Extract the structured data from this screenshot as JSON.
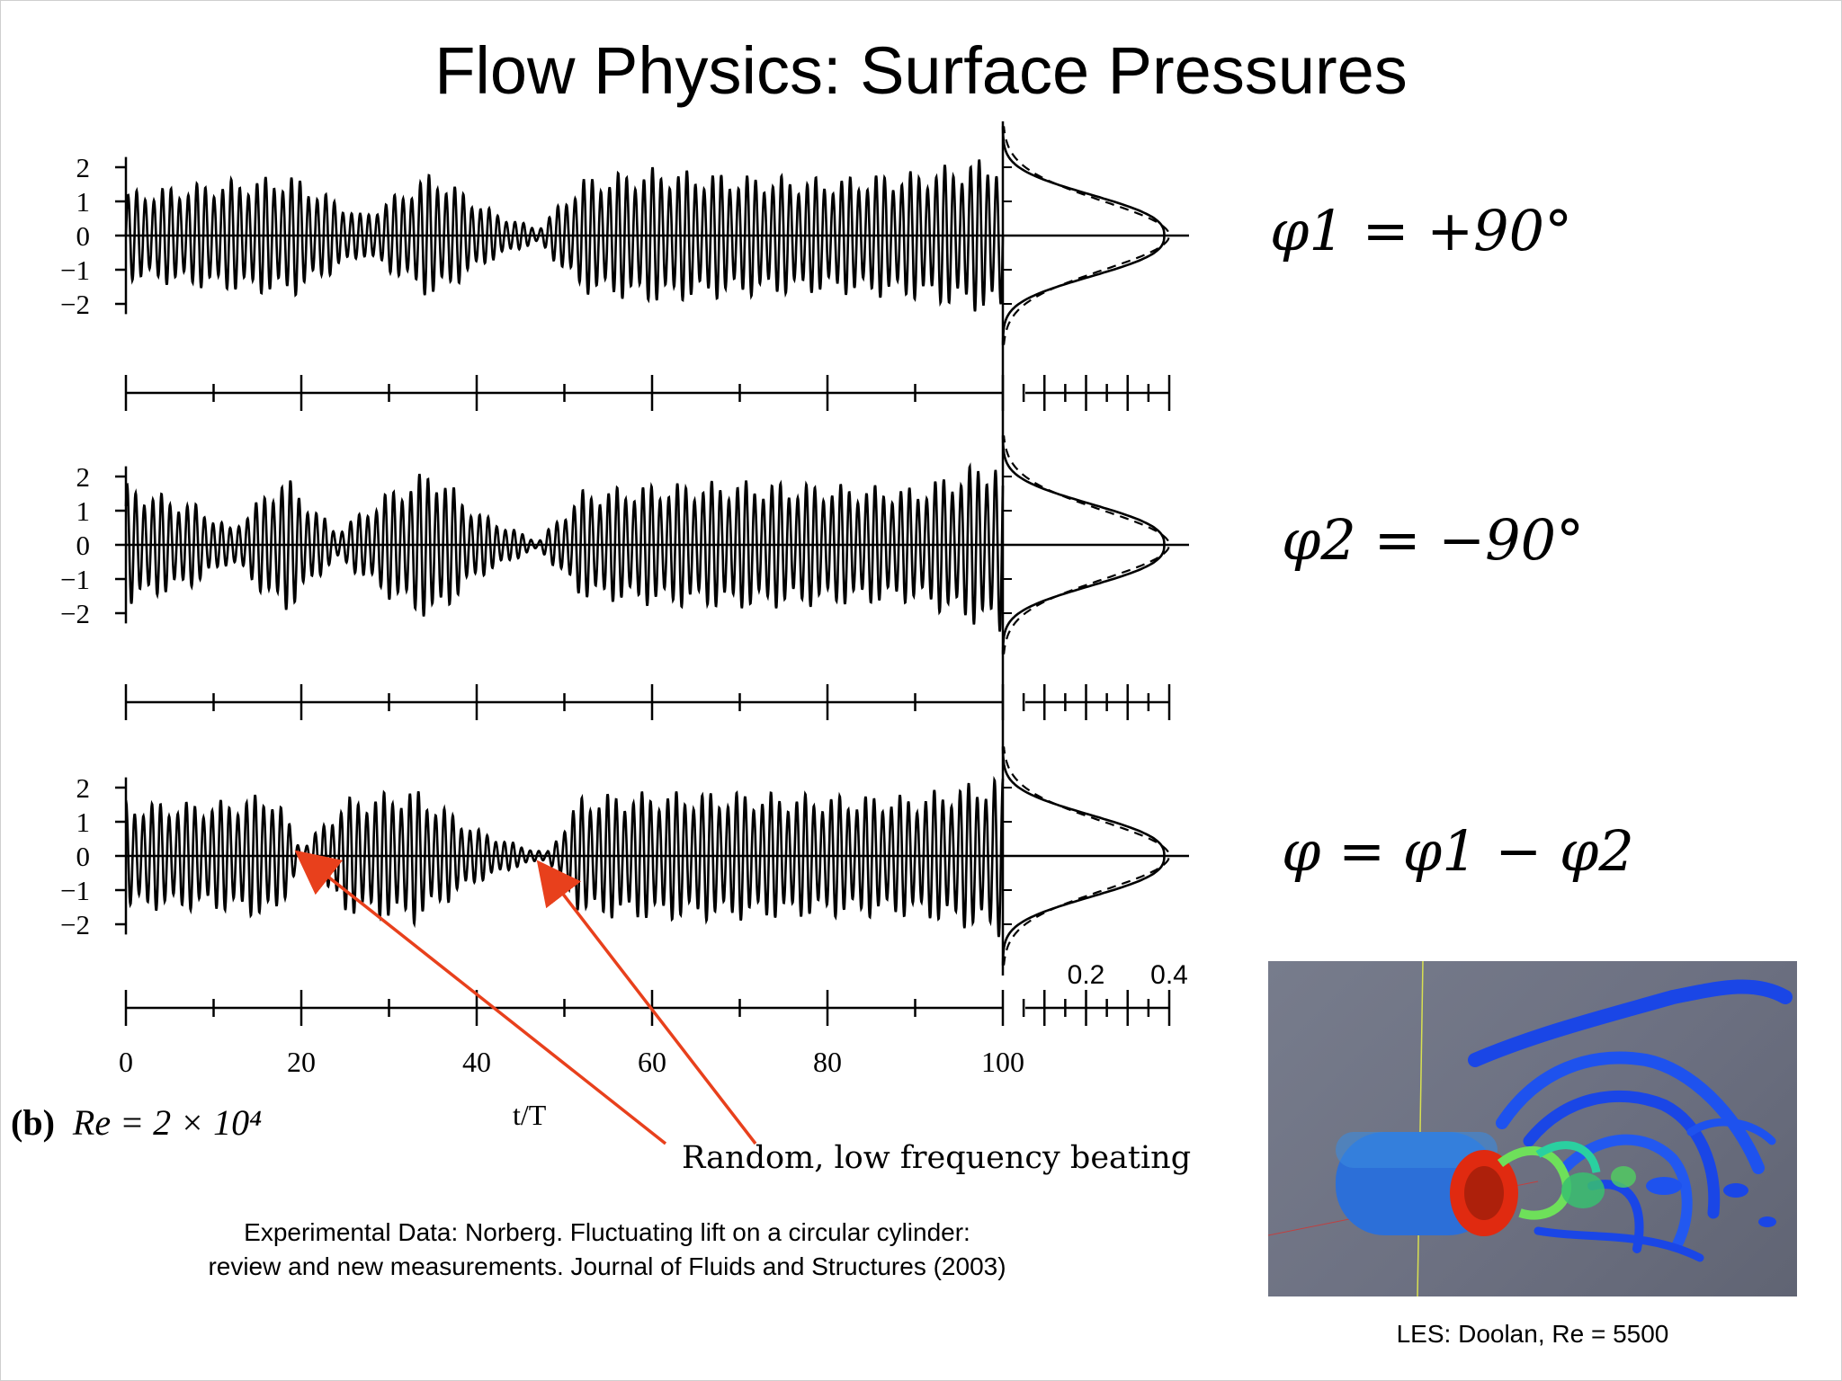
{
  "title": "Flow Physics: Surface Pressures",
  "equations": [
    "φ1 = +90°",
    "φ2 = −90°",
    "φ = φ1 − φ2"
  ],
  "reynolds_label": {
    "panel": "(b)",
    "text": "Re = 2 × 10⁴"
  },
  "annotation": "Random, low frequency beating",
  "citation": {
    "line1": "Experimental Data: Norberg. Fluctuating lift on a circular cylinder:",
    "line2": "review and new measurements. Journal of Fluids and Structures (2003)"
  },
  "les_caption": "LES: Doolan, Re = 5500",
  "colors": {
    "trace": "#000000",
    "arrow": "#e8401c",
    "les_background": "#6c7081",
    "vortex_blue": "#1a46e6",
    "cylinder_red": "#e02a10",
    "vortex_green": "#6ee05a"
  },
  "chart_data": {
    "type": "line",
    "xlabel": "t/T",
    "xlim": [
      0,
      100
    ],
    "xticks": [
      "0",
      "20",
      "40",
      "60",
      "80",
      "100"
    ],
    "ylim": [
      -2.5,
      2.5
    ],
    "yticks": [
      "2",
      "1",
      "0",
      "−1",
      "−2"
    ],
    "pdf_xticks": [
      "0.2",
      "0.4"
    ],
    "pdf_xlim": [
      0,
      0.4
    ],
    "panels": [
      {
        "name": "φ1 = +90°",
        "oscillations_per_T": 1,
        "envelope_t": [
          0,
          10,
          19,
          27,
          35,
          42,
          47,
          52,
          60,
          70,
          80,
          90,
          100
        ],
        "envelope_amp": [
          1.3,
          1.6,
          1.8,
          0.6,
          1.9,
          0.7,
          0.2,
          1.7,
          2.0,
          1.8,
          1.7,
          1.9,
          2.4
        ]
      },
      {
        "name": "φ2 = −90°",
        "oscillations_per_T": 1,
        "envelope_t": [
          0,
          8,
          12,
          18,
          24,
          30,
          35,
          40,
          47,
          52,
          60,
          70,
          80,
          90,
          100
        ],
        "envelope_amp": [
          1.8,
          1.2,
          0.5,
          2.1,
          0.4,
          1.6,
          2.3,
          1.0,
          0.1,
          1.6,
          1.8,
          1.9,
          1.8,
          1.7,
          2.7
        ]
      },
      {
        "name": "φ = φ1 − φ2",
        "oscillations_per_T": 1,
        "envelope_t": [
          0,
          10,
          17,
          20,
          25,
          33,
          40,
          45,
          48,
          52,
          60,
          70,
          80,
          90,
          100
        ],
        "envelope_amp": [
          1.6,
          1.6,
          1.9,
          0.2,
          1.7,
          2.0,
          0.8,
          0.3,
          0.1,
          1.8,
          1.9,
          1.9,
          1.8,
          1.8,
          2.4
        ]
      }
    ],
    "pdf": {
      "series": [
        "measured",
        "gaussian"
      ],
      "peak_density": 0.4
    }
  }
}
